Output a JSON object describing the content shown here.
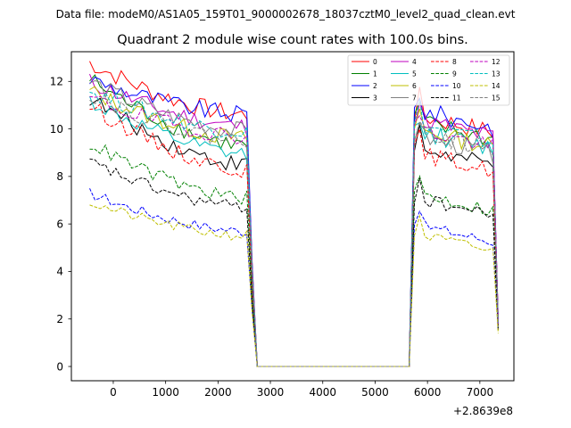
{
  "suptitle": "Data file: modeM0/AS1A05_159T01_9000002678_18037cztM0_level2_quad_clean.evt",
  "chart_data": {
    "type": "line",
    "title": "Quadrant 2 module wise count rates with 100.0s bins.",
    "xlabel": "",
    "ylabel": "",
    "x_offset_label": "+2.8639e8",
    "xlim": [
      -800,
      7650
    ],
    "ylim": [
      -0.6,
      13.25
    ],
    "xticks": [
      0,
      1000,
      2000,
      3000,
      4000,
      5000,
      6000,
      7000
    ],
    "xtick_labels": [
      "0",
      "1000",
      "2000",
      "3000",
      "4000",
      "5000",
      "6000",
      "7000"
    ],
    "yticks": [
      0,
      2,
      4,
      6,
      8,
      10,
      12
    ],
    "ytick_labels": [
      "0",
      "2",
      "4",
      "6",
      "8",
      "10",
      "12"
    ],
    "grid": false,
    "legend_position": "top-right",
    "segments": {
      "first": {
        "t_start": -450,
        "t_end": 2550,
        "step": 100
      },
      "gap": {
        "t_start": 2750,
        "t_end": 5650,
        "value": 0.0
      },
      "second": {
        "t_start": 5750,
        "t_end": 7250,
        "step": 100
      },
      "edges": {
        "pre_gap_t": 2650,
        "post_gap_t": 5650,
        "final_t": 7350
      }
    },
    "series": [
      {
        "name": "0",
        "color": "#ff0000",
        "dash": "solid",
        "first_start": 12.8,
        "first_end": 10.6,
        "second_level": 10.6,
        "final": 2.0
      },
      {
        "name": "1",
        "color": "#008000",
        "dash": "solid",
        "first_start": 12.1,
        "first_end": 9.3,
        "second_level": 10.3,
        "final": 1.8
      },
      {
        "name": "2",
        "color": "#0000ff",
        "dash": "solid",
        "first_start": 12.1,
        "first_end": 10.6,
        "second_level": 10.8,
        "final": 2.0
      },
      {
        "name": "3",
        "color": "#000000",
        "dash": "solid",
        "first_start": 11.3,
        "first_end": 8.5,
        "second_level": 9.2,
        "final": 1.7
      },
      {
        "name": "4",
        "color": "#bf00bf",
        "dash": "solid",
        "first_start": 12.0,
        "first_end": 10.1,
        "second_level": 10.4,
        "final": 1.9
      },
      {
        "name": "5",
        "color": "#00bfbf",
        "dash": "solid",
        "first_start": 11.2,
        "first_end": 8.9,
        "second_level": 9.9,
        "final": 1.8
      },
      {
        "name": "6",
        "color": "#bfbf00",
        "dash": "solid",
        "first_start": 11.6,
        "first_end": 9.6,
        "second_level": 10.0,
        "final": 1.8
      },
      {
        "name": "7",
        "color": "#808080",
        "dash": "solid",
        "first_start": 12.0,
        "first_end": 9.9,
        "second_level": 9.7,
        "final": 1.8
      },
      {
        "name": "8",
        "color": "#ff0000",
        "dash": "dashed",
        "first_start": 11.0,
        "first_end": 8.3,
        "second_level": 9.0,
        "final": 1.6
      },
      {
        "name": "9",
        "color": "#008000",
        "dash": "dashed",
        "first_start": 9.4,
        "first_end": 7.1,
        "second_level": 7.3,
        "final": 1.6
      },
      {
        "name": "10",
        "color": "#0000ff",
        "dash": "dashed",
        "first_start": 7.3,
        "first_end": 5.7,
        "second_level": 6.0,
        "final": 1.6
      },
      {
        "name": "11",
        "color": "#000000",
        "dash": "dashed",
        "first_start": 8.6,
        "first_end": 6.7,
        "second_level": 7.1,
        "final": 1.5
      },
      {
        "name": "12",
        "color": "#bf00bf",
        "dash": "dashed",
        "first_start": 11.3,
        "first_end": 9.7,
        "second_level": 10.0,
        "final": 1.8
      },
      {
        "name": "13",
        "color": "#00bfbf",
        "dash": "dashed",
        "first_start": 11.6,
        "first_end": 9.9,
        "second_level": 10.2,
        "final": 1.8
      },
      {
        "name": "14",
        "color": "#bfbf00",
        "dash": "dashed",
        "first_start": 6.9,
        "first_end": 5.5,
        "second_level": 5.6,
        "final": 1.4
      },
      {
        "name": "15",
        "color": "#808080",
        "dash": "dashed",
        "first_start": 11.5,
        "first_end": 9.5,
        "second_level": 9.9,
        "final": 1.8
      }
    ]
  }
}
